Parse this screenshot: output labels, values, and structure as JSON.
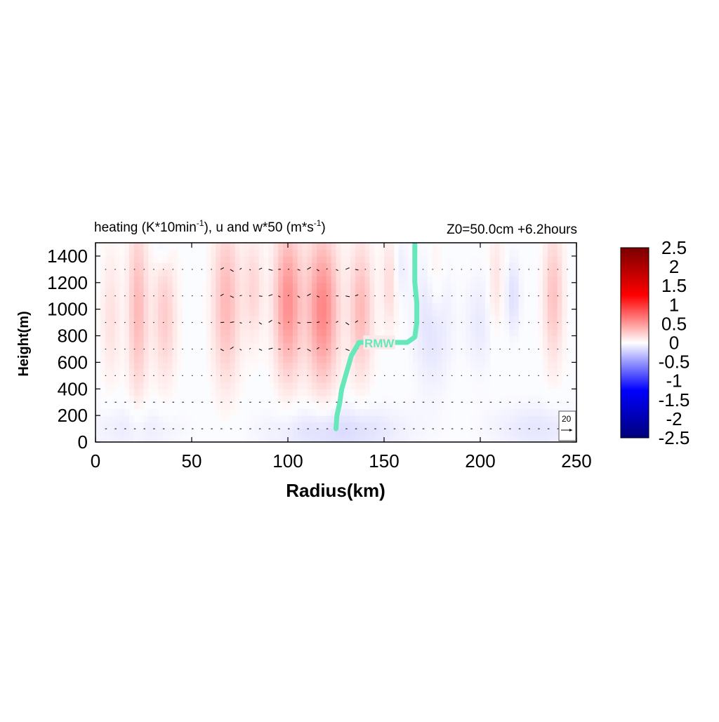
{
  "chart_data": {
    "type": "heatmap",
    "title": {
      "main": "heating (K*10min",
      "main_sup": "-1",
      "mid": "), u and w*50 (m*s",
      "mid_sup": "-1",
      "end": ")"
    },
    "annotation": "Z0=50.0cm  +6.2hours",
    "xlabel": "Radius(km)",
    "ylabel": "Height(m)",
    "xlim": [
      0,
      250
    ],
    "ylim": [
      0,
      1500
    ],
    "xticks": [
      "0",
      "50",
      "100",
      "150",
      "200",
      "250"
    ],
    "xtick_values": [
      0,
      50,
      100,
      150,
      200,
      250
    ],
    "yticks": [
      "0",
      "200",
      "400",
      "600",
      "800",
      "1000",
      "1200",
      "1400"
    ],
    "ytick_values": [
      0,
      200,
      400,
      600,
      800,
      1000,
      1200,
      1400
    ],
    "colorbar": {
      "min": -2.5,
      "max": 2.5,
      "ticks": [
        "2.5",
        "2",
        "1.5",
        "1",
        "0.5",
        "0",
        "-0.5",
        "-1",
        "-1.5",
        "-2",
        "-2.5"
      ],
      "tick_values": [
        2.5,
        2,
        1.5,
        1,
        0.5,
        0,
        -0.5,
        -1,
        -1.5,
        -2,
        -2.5
      ],
      "colors": [
        "#7a0000",
        "#ff0000",
        "#ffffff",
        "#0000ff",
        "#00007a"
      ]
    },
    "heating_blobs": [
      {
        "r": 8,
        "z": 950,
        "rw": 5,
        "zw": 500,
        "v": 0.15
      },
      {
        "r": 22,
        "z": 1000,
        "rw": 5,
        "zw": 650,
        "v": 0.35
      },
      {
        "r": 36,
        "z": 950,
        "rw": 6,
        "zw": 500,
        "v": 0.25
      },
      {
        "r": 68,
        "z": 1050,
        "rw": 7,
        "zw": 600,
        "v": 0.35
      },
      {
        "r": 82,
        "z": 1150,
        "rw": 5,
        "zw": 400,
        "v": 0.2
      },
      {
        "r": 100,
        "z": 1050,
        "rw": 7,
        "zw": 550,
        "v": 0.55
      },
      {
        "r": 118,
        "z": 1000,
        "rw": 8,
        "zw": 550,
        "v": 0.6
      },
      {
        "r": 138,
        "z": 1000,
        "rw": 6,
        "zw": 500,
        "v": 0.35
      },
      {
        "r": 153,
        "z": 1200,
        "rw": 4,
        "zw": 350,
        "v": 0.2
      },
      {
        "r": 177,
        "z": 1250,
        "rw": 4,
        "zw": 350,
        "v": 0.12
      },
      {
        "r": 208,
        "z": 1200,
        "rw": 4,
        "zw": 400,
        "v": 0.15
      },
      {
        "r": 238,
        "z": 1100,
        "rw": 5,
        "zw": 500,
        "v": 0.3
      },
      {
        "r": 125,
        "z": 80,
        "rw": 35,
        "zw": 200,
        "v": -0.18
      },
      {
        "r": 20,
        "z": 100,
        "rw": 25,
        "zw": 200,
        "v": -0.1
      },
      {
        "r": 230,
        "z": 100,
        "rw": 25,
        "zw": 200,
        "v": -0.12
      },
      {
        "r": 175,
        "z": 900,
        "rw": 10,
        "zw": 500,
        "v": -0.15
      },
      {
        "r": 200,
        "z": 900,
        "rw": 8,
        "zw": 400,
        "v": -0.1
      },
      {
        "r": 217,
        "z": 1100,
        "rw": 4,
        "zw": 300,
        "v": -0.15
      },
      {
        "r": 158,
        "z": 1300,
        "rw": 4,
        "zw": 250,
        "v": -0.1
      },
      {
        "r": 35,
        "z": 1450,
        "rw": 4,
        "zw": 150,
        "v": -0.12
      }
    ],
    "vector_levels": [
      100,
      300,
      500,
      700,
      900,
      1100,
      1300
    ],
    "rmw": {
      "label": "RMW",
      "color": "#66e8bb",
      "radius": [
        125,
        125.5,
        127,
        128,
        130,
        133,
        137,
        150,
        162,
        166,
        167,
        167,
        166,
        166,
        166
      ],
      "height": [
        100,
        200,
        300,
        400,
        500,
        650,
        750,
        750,
        750,
        790,
        900,
        1050,
        1200,
        1350,
        1500
      ]
    },
    "reference_vector": {
      "label": "20"
    }
  }
}
